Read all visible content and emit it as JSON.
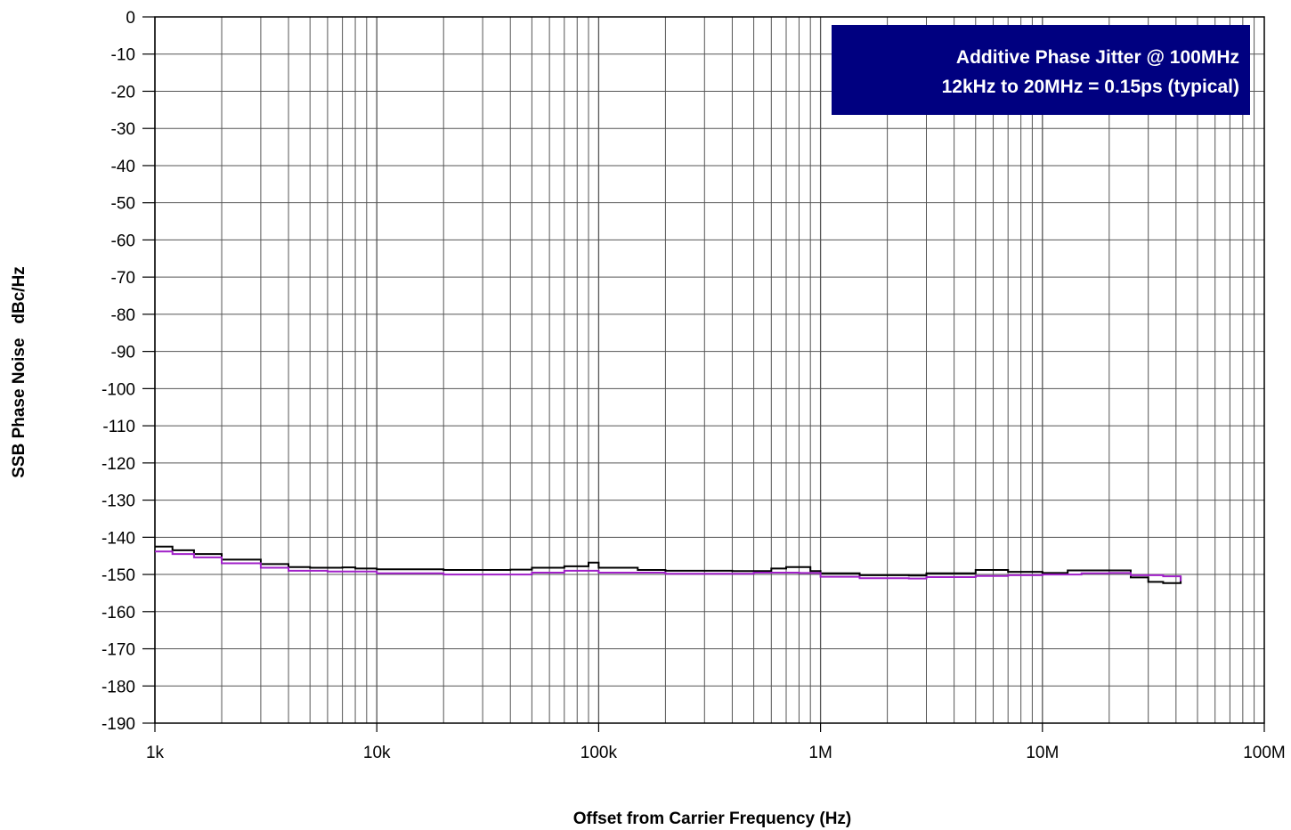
{
  "chart_data": {
    "type": "line",
    "xscale": "log",
    "xlim": [
      1000,
      100000000
    ],
    "ylim": [
      -190,
      0
    ],
    "grid": true,
    "xlabel": "Offset from Carrier Frequency (Hz)",
    "ylabel": "SSB Phase Noise   dBc/Hz",
    "x_ticks": [
      {
        "value": 1000,
        "label": "1k"
      },
      {
        "value": 10000,
        "label": "10k"
      },
      {
        "value": 100000,
        "label": "100k"
      },
      {
        "value": 1000000,
        "label": "1M"
      },
      {
        "value": 10000000,
        "label": "10M"
      },
      {
        "value": 100000000,
        "label": "100M"
      }
    ],
    "y_ticks": [
      {
        "value": 0,
        "label": "0"
      },
      {
        "value": -10,
        "label": "-10"
      },
      {
        "value": -20,
        "label": "-20"
      },
      {
        "value": -30,
        "label": "-30"
      },
      {
        "value": -40,
        "label": "-40"
      },
      {
        "value": -50,
        "label": "-50"
      },
      {
        "value": -60,
        "label": "-60"
      },
      {
        "value": -70,
        "label": "-70"
      },
      {
        "value": -80,
        "label": "-80"
      },
      {
        "value": -90,
        "label": "-90"
      },
      {
        "value": -100,
        "label": "-100"
      },
      {
        "value": -110,
        "label": "-110"
      },
      {
        "value": -120,
        "label": "-120"
      },
      {
        "value": -130,
        "label": "-130"
      },
      {
        "value": -140,
        "label": "-140"
      },
      {
        "value": -150,
        "label": "-150"
      },
      {
        "value": -160,
        "label": "-160"
      },
      {
        "value": -170,
        "label": "-170"
      },
      {
        "value": -180,
        "label": "-180"
      },
      {
        "value": -190,
        "label": "-190"
      }
    ],
    "annotation": {
      "lines": [
        "Additive Phase Jitter @ 100MHz",
        "12kHz to 20MHz = 0.15ps (typical)"
      ],
      "background": "#000080",
      "text_color": "#ffffff",
      "position": "top-right"
    },
    "series": [
      {
        "color": "#000000",
        "points": [
          [
            1000,
            -142.5
          ],
          [
            1200,
            -143.5
          ],
          [
            1500,
            -144.5
          ],
          [
            2000,
            -146
          ],
          [
            3000,
            -147.2
          ],
          [
            4000,
            -148
          ],
          [
            5000,
            -148.2
          ],
          [
            7000,
            -148.1
          ],
          [
            8000,
            -148.4
          ],
          [
            10000,
            -148.6
          ],
          [
            20000,
            -148.8
          ],
          [
            40000,
            -148.7
          ],
          [
            50000,
            -148.2
          ],
          [
            70000,
            -147.8
          ],
          [
            90000,
            -146.8
          ],
          [
            100000,
            -148.2
          ],
          [
            150000,
            -148.8
          ],
          [
            200000,
            -149
          ],
          [
            400000,
            -149.1
          ],
          [
            600000,
            -148.4
          ],
          [
            700000,
            -148
          ],
          [
            900000,
            -149.1
          ],
          [
            1000000,
            -149.7
          ],
          [
            1500000,
            -150.2
          ],
          [
            2500000,
            -150.3
          ],
          [
            3000000,
            -149.7
          ],
          [
            5000000,
            -148.8
          ],
          [
            7000000,
            -149.3
          ],
          [
            10000000,
            -149.6
          ],
          [
            13000000,
            -148.9
          ],
          [
            20000000,
            -148.9
          ],
          [
            25000000,
            -150.8
          ],
          [
            30000000,
            -152
          ],
          [
            35000000,
            -152.3
          ],
          [
            42000000,
            -150.5
          ]
        ]
      },
      {
        "color": "#a020c8",
        "points": [
          [
            1000,
            -143.8
          ],
          [
            1200,
            -144.5
          ],
          [
            1500,
            -145.4
          ],
          [
            2000,
            -147
          ],
          [
            3000,
            -148.2
          ],
          [
            4000,
            -149
          ],
          [
            6000,
            -149.2
          ],
          [
            10000,
            -149.7
          ],
          [
            20000,
            -150
          ],
          [
            50000,
            -149.5
          ],
          [
            70000,
            -149
          ],
          [
            100000,
            -149.5
          ],
          [
            200000,
            -149.8
          ],
          [
            500000,
            -149.5
          ],
          [
            800000,
            -149.6
          ],
          [
            1000000,
            -150.6
          ],
          [
            1500000,
            -151
          ],
          [
            2500000,
            -151.1
          ],
          [
            3000000,
            -150.7
          ],
          [
            5000000,
            -150.4
          ],
          [
            7000000,
            -150.2
          ],
          [
            10000000,
            -150
          ],
          [
            15000000,
            -149.7
          ],
          [
            20000000,
            -149.6
          ],
          [
            25000000,
            -150.2
          ],
          [
            35000000,
            -150.5
          ],
          [
            42000000,
            -151.8
          ]
        ]
      }
    ]
  }
}
